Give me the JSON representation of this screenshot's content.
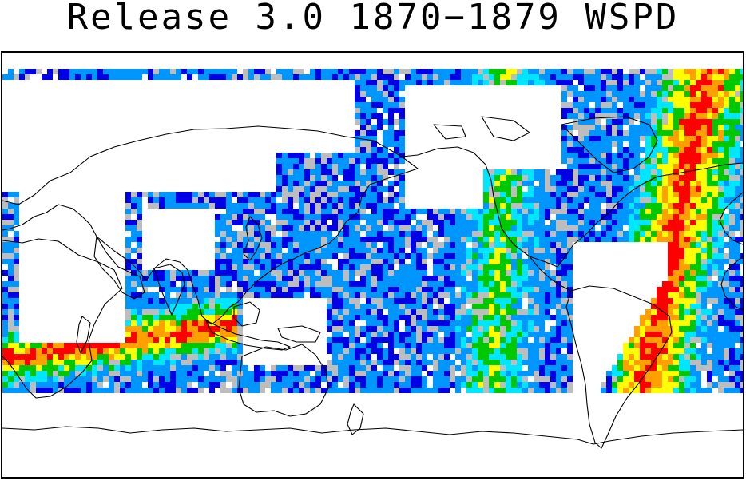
{
  "title": "Release 3.0 1870−1879 WSPD",
  "colors": {
    "no_data": "#ffffff",
    "sparse": "#bdbdbd",
    "low": "#0000e6",
    "low_mid": "#0096ff",
    "mid": "#00e6ff",
    "mid_high": "#00c800",
    "high": "#ffff00",
    "higher": "#ffa000",
    "max": "#ff0000",
    "coastline": "#000000"
  },
  "map": {
    "projection": "equirectangular",
    "center_longitude": 180,
    "variable": "WSPD",
    "period": "1870-1879"
  }
}
